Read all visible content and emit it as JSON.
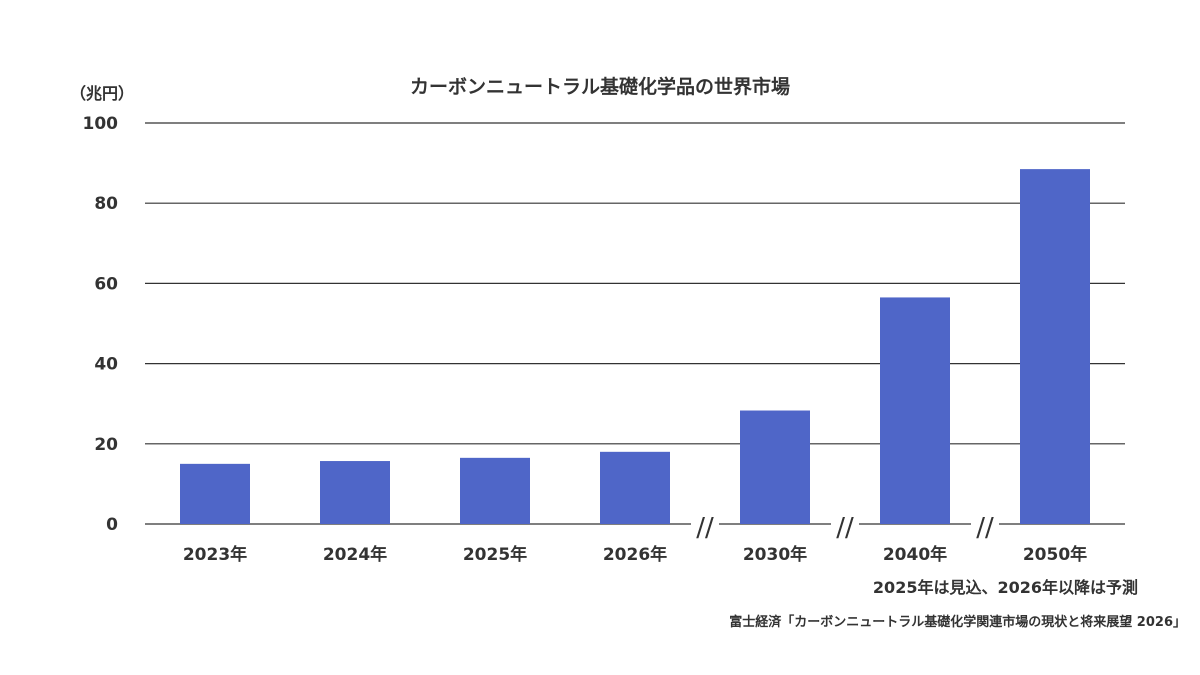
{
  "chart_data": {
    "type": "bar",
    "title": "カーボンニュートラル基礎化学品の世界市場",
    "unit": "（兆円）",
    "categories": [
      "2023年",
      "2024年",
      "2025年",
      "2026年",
      "2030年",
      "2040年",
      "2050年"
    ],
    "values": [
      15,
      15.7,
      16.5,
      18,
      28.3,
      56.5,
      88.5
    ],
    "yticks": [
      "100",
      "80",
      "60",
      "40",
      "20",
      "0"
    ],
    "ylim": [
      0,
      100
    ],
    "axis_break_marks": [
      "//",
      "//",
      "//"
    ],
    "grid": true,
    "bar_color": "#4f66c8"
  },
  "note": "2025年は見込、2026年以降は予測",
  "source": "富士経済「カーボンニュートラル基礎化学関連市場の現状と将来展望 2026」"
}
